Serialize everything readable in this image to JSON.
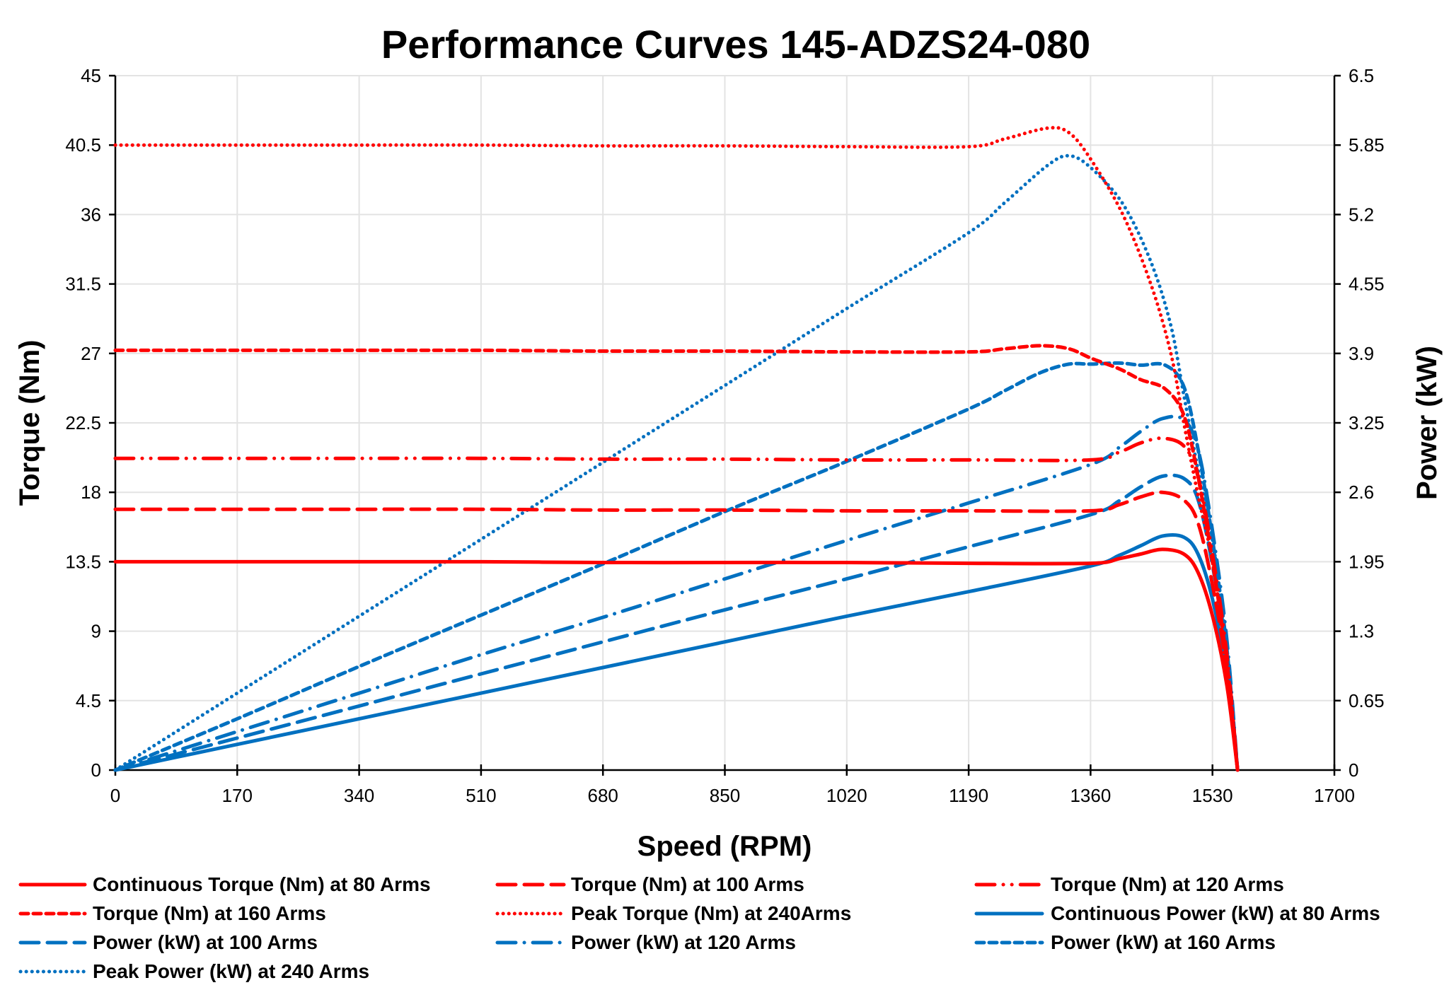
{
  "chart_data": {
    "type": "line",
    "title": "Performance Curves 145-ADZS24-080",
    "xlabel": "Speed (RPM)",
    "ylabel": "Torque (Nm)",
    "y2label": "Power (kW)",
    "xlim": [
      0,
      1700
    ],
    "ylim": [
      0,
      45
    ],
    "y2lim": [
      0,
      6.5
    ],
    "grid": true,
    "legend_position": "bottom",
    "x_ticks": [
      "0",
      "170",
      "340",
      "510",
      "680",
      "850",
      "1020",
      "1190",
      "1360",
      "1530",
      "1700"
    ],
    "y_ticks": [
      "0",
      "4.5",
      "9",
      "13.5",
      "18",
      "22.5",
      "27",
      "31.5",
      "36",
      "40.5",
      "45"
    ],
    "y2_ticks": [
      "0",
      "0.65",
      "1.3",
      "1.95",
      "2.6",
      "3.25",
      "3.9",
      "4.55",
      "5.2",
      "5.85",
      "6.5"
    ],
    "colors": {
      "torque": "#ff0000",
      "power": "#0070c0"
    },
    "series": [
      {
        "name": "Continuous Torque (Nm) at 80 Arms",
        "axis": "left",
        "color": "#ff0000",
        "dash": "solid",
        "x": [
          0,
          170,
          340,
          510,
          680,
          850,
          1020,
          1190,
          1360,
          1400,
          1430,
          1460,
          1490,
          1510,
          1530,
          1550,
          1565
        ],
        "y": [
          13.5,
          13.5,
          13.5,
          13.5,
          13.45,
          13.45,
          13.45,
          13.4,
          13.4,
          13.7,
          14.0,
          14.3,
          14.0,
          12.8,
          10.0,
          5.5,
          0
        ]
      },
      {
        "name": "Torque (Nm) at 100 Arms",
        "axis": "left",
        "color": "#ff0000",
        "dash": "long-dash",
        "x": [
          0,
          170,
          340,
          510,
          680,
          850,
          1020,
          1190,
          1360,
          1400,
          1430,
          1460,
          1490,
          1510,
          1530,
          1550,
          1565
        ],
        "y": [
          16.9,
          16.9,
          16.9,
          16.9,
          16.85,
          16.85,
          16.8,
          16.8,
          16.8,
          17.2,
          17.7,
          18.0,
          17.5,
          16.0,
          12.0,
          6.5,
          0
        ]
      },
      {
        "name": "Torque (Nm) at 120 Arms",
        "axis": "left",
        "color": "#ff0000",
        "dash": "long-dash-dot-dot",
        "x": [
          0,
          170,
          340,
          510,
          680,
          850,
          1020,
          1190,
          1360,
          1400,
          1430,
          1460,
          1490,
          1510,
          1530,
          1550,
          1565
        ],
        "y": [
          20.2,
          20.2,
          20.2,
          20.2,
          20.15,
          20.15,
          20.1,
          20.1,
          20.1,
          20.6,
          21.2,
          21.5,
          21.0,
          19.0,
          14.0,
          7.5,
          0
        ]
      },
      {
        "name": "Torque (Nm) at 160 Arms",
        "axis": "left",
        "color": "#ff0000",
        "dash": "dash",
        "x": [
          0,
          170,
          340,
          510,
          680,
          850,
          1020,
          1190,
          1240,
          1290,
          1330,
          1360,
          1400,
          1430,
          1464,
          1490,
          1510,
          1530,
          1550,
          1565
        ],
        "y": [
          27.2,
          27.2,
          27.2,
          27.2,
          27.15,
          27.15,
          27.1,
          27.1,
          27.3,
          27.5,
          27.3,
          26.7,
          26.0,
          25.3,
          24.7,
          23.0,
          19.0,
          13.5,
          7.0,
          0
        ]
      },
      {
        "name": "Peak Torque (Nm) at 240Arms",
        "axis": "left",
        "color": "#ff0000",
        "dash": "dot",
        "x": [
          0,
          170,
          340,
          510,
          680,
          850,
          1020,
          1190,
          1240,
          1300,
          1330,
          1360,
          1405,
          1444,
          1472,
          1490,
          1509,
          1530,
          1543,
          1565
        ],
        "y": [
          40.5,
          40.5,
          40.5,
          40.5,
          40.45,
          40.45,
          40.4,
          40.4,
          40.9,
          41.6,
          41.3,
          39.6,
          36,
          31.5,
          27,
          22.5,
          18,
          13.5,
          9,
          0
        ]
      },
      {
        "name": "Continuous Power (kW) at 80 Arms",
        "axis": "right",
        "color": "#0070c0",
        "dash": "solid",
        "x": [
          0,
          170,
          340,
          510,
          680,
          850,
          1020,
          1190,
          1360,
          1400,
          1430,
          1460,
          1490,
          1510,
          1530,
          1550,
          1565
        ],
        "y": [
          0,
          0.24,
          0.48,
          0.72,
          0.96,
          1.2,
          1.44,
          1.67,
          1.91,
          2.01,
          2.1,
          2.19,
          2.18,
          2.02,
          1.6,
          0.89,
          0
        ]
      },
      {
        "name": "Power (kW) at 100 Arms",
        "axis": "right",
        "color": "#0070c0",
        "dash": "long-dash",
        "x": [
          0,
          170,
          340,
          510,
          680,
          850,
          1020,
          1190,
          1360,
          1400,
          1430,
          1460,
          1490,
          1510,
          1530,
          1550,
          1565
        ],
        "y": [
          0,
          0.3,
          0.6,
          0.9,
          1.2,
          1.5,
          1.79,
          2.09,
          2.39,
          2.52,
          2.65,
          2.75,
          2.73,
          2.53,
          1.92,
          1.06,
          0
        ]
      },
      {
        "name": "Power (kW) at 120 Arms",
        "axis": "right",
        "color": "#0070c0",
        "dash": "long-dash-dot",
        "x": [
          0,
          170,
          340,
          510,
          680,
          850,
          1020,
          1190,
          1360,
          1400,
          1430,
          1460,
          1490,
          1510,
          1530,
          1550,
          1565
        ],
        "y": [
          0,
          0.36,
          0.72,
          1.08,
          1.43,
          1.79,
          2.15,
          2.5,
          2.86,
          3.02,
          3.17,
          3.29,
          3.28,
          3.0,
          2.24,
          1.22,
          0
        ]
      },
      {
        "name": "Power (kW) at 160 Arms",
        "axis": "right",
        "color": "#0070c0",
        "dash": "dash",
        "x": [
          0,
          170,
          340,
          510,
          680,
          850,
          1020,
          1190,
          1240,
          1290,
          1330,
          1360,
          1400,
          1430,
          1464,
          1490,
          1510,
          1530,
          1550,
          1565
        ],
        "y": [
          0,
          0.48,
          0.97,
          1.45,
          1.93,
          2.42,
          2.89,
          3.38,
          3.55,
          3.72,
          3.8,
          3.8,
          3.81,
          3.79,
          3.79,
          3.59,
          3.0,
          2.16,
          1.14,
          0
        ]
      },
      {
        "name": "Peak Power (kW) at 240 Arms",
        "axis": "right",
        "color": "#0070c0",
        "dash": "dot",
        "x": [
          0,
          170,
          340,
          510,
          680,
          850,
          1020,
          1190,
          1240,
          1300,
          1330,
          1360,
          1405,
          1444,
          1472,
          1490,
          1509,
          1530,
          1543,
          1565
        ],
        "y": [
          0,
          0.72,
          1.44,
          2.16,
          2.88,
          3.6,
          4.32,
          5.03,
          5.31,
          5.66,
          5.75,
          5.64,
          5.3,
          4.76,
          4.16,
          3.51,
          2.84,
          2.16,
          1.45,
          0
        ]
      }
    ]
  }
}
